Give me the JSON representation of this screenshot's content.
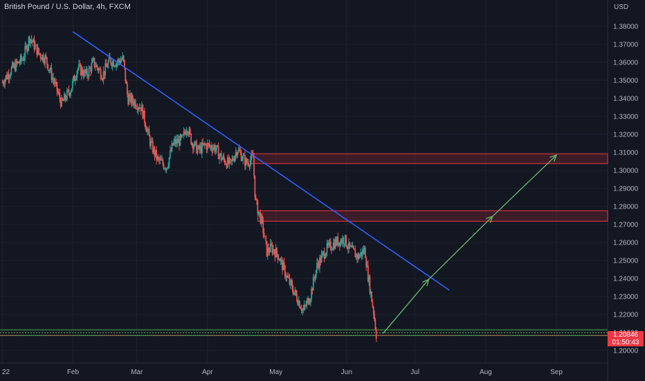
{
  "header": {
    "title": "British Pound / U.S. Dollar, 4h, FXCM",
    "currency": "USD"
  },
  "last_price": {
    "value": "1.20846",
    "countdown": "01:50:43"
  },
  "colors": {
    "background": "#131722",
    "grid": "#1e222d",
    "axis_text": "#b2b5be",
    "up": "#26a69a",
    "down": "#ef5350",
    "trendline": "#2962ff",
    "resistance_zone": "#f23645",
    "support_line": "#4caf50",
    "projection_arrow": "#66bb6a"
  },
  "chart_data": {
    "type": "candlestick",
    "title": "British Pound / U.S. Dollar, 4h, FXCM",
    "x_ticks": [
      "22",
      "Feb",
      "Mar",
      "Apr",
      "May",
      "Jun",
      "Jul",
      "Aug",
      "Sep"
    ],
    "y_ticks": [
      "1.38000",
      "1.37000",
      "1.36000",
      "1.35000",
      "1.34000",
      "1.33000",
      "1.32000",
      "1.31000",
      "1.30000",
      "1.29000",
      "1.28000",
      "1.27000",
      "1.26000",
      "1.25000",
      "1.24000",
      "1.23000",
      "1.22000",
      "1.21000",
      "1.20000"
    ],
    "ylim": [
      1.1955,
      1.3852
    ],
    "price_path": [
      [
        "2022-01-01",
        1.349
      ],
      [
        "2022-01-05",
        1.356
      ],
      [
        "2022-01-10",
        1.362
      ],
      [
        "2022-01-13",
        1.374
      ],
      [
        "2022-01-17",
        1.365
      ],
      [
        "2022-01-20",
        1.362
      ],
      [
        "2022-01-24",
        1.348
      ],
      [
        "2022-01-27",
        1.337
      ],
      [
        "2022-01-31",
        1.345
      ],
      [
        "2022-02-03",
        1.357
      ],
      [
        "2022-02-07",
        1.353
      ],
      [
        "2022-02-10",
        1.36
      ],
      [
        "2022-02-14",
        1.353
      ],
      [
        "2022-02-17",
        1.361
      ],
      [
        "2022-02-20",
        1.36
      ],
      [
        "2022-02-23",
        1.362
      ],
      [
        "2022-02-25",
        1.34
      ],
      [
        "2022-02-28",
        1.338
      ],
      [
        "2022-03-03",
        1.335
      ],
      [
        "2022-03-07",
        1.315
      ],
      [
        "2022-03-10",
        1.306
      ],
      [
        "2022-03-14",
        1.302
      ],
      [
        "2022-03-17",
        1.315
      ],
      [
        "2022-03-21",
        1.317
      ],
      [
        "2022-03-23",
        1.325
      ],
      [
        "2022-03-25",
        1.316
      ],
      [
        "2022-03-28",
        1.311
      ],
      [
        "2022-03-31",
        1.314
      ],
      [
        "2022-04-04",
        1.313
      ],
      [
        "2022-04-07",
        1.307
      ],
      [
        "2022-04-11",
        1.303
      ],
      [
        "2022-04-14",
        1.312
      ],
      [
        "2022-04-18",
        1.304
      ],
      [
        "2022-04-20",
        1.306
      ],
      [
        "2022-04-21",
        1.307
      ],
      [
        "2022-04-22",
        1.283
      ],
      [
        "2022-04-25",
        1.27
      ],
      [
        "2022-04-27",
        1.255
      ],
      [
        "2022-04-29",
        1.257
      ],
      [
        "2022-05-02",
        1.253
      ],
      [
        "2022-05-06",
        1.24
      ],
      [
        "2022-05-10",
        1.23
      ],
      [
        "2022-05-13",
        1.222
      ],
      [
        "2022-05-16",
        1.23
      ],
      [
        "2022-05-19",
        1.247
      ],
      [
        "2022-05-23",
        1.256
      ],
      [
        "2022-05-27",
        1.26
      ],
      [
        "2022-05-31",
        1.262
      ],
      [
        "2022-06-02",
        1.257
      ],
      [
        "2022-06-06",
        1.252
      ],
      [
        "2022-06-09",
        1.256
      ],
      [
        "2022-06-10",
        1.245
      ],
      [
        "2022-06-13",
        1.22
      ],
      [
        "2022-06-14",
        1.209
      ]
    ],
    "annotations": {
      "trendline": {
        "from": [
          "2022-02-01",
          1.377
        ],
        "to": [
          "2022-07-16",
          1.2335
        ]
      },
      "resistance_zones": [
        {
          "from": "2022-04-20",
          "y_low": 1.3038,
          "y_high": 1.3092
        },
        {
          "from": "2022-04-23",
          "y_low": 1.2718,
          "y_high": 1.2776
        }
      ],
      "support_lines": [
        1.2115,
        1.2083
      ],
      "projection_arrow": [
        [
          "2022-06-17",
          1.2095
        ],
        [
          "2022-07-07",
          1.2395
        ],
        [
          "2022-08-04",
          1.2745
        ],
        [
          "2022-09-01",
          1.3085
        ]
      ]
    }
  }
}
